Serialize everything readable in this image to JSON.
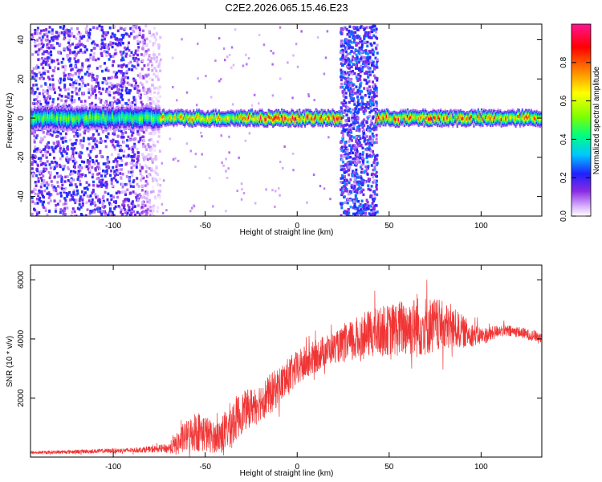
{
  "chart_data": [
    {
      "type": "heatmap",
      "title": "C2E2.2026.065.15.46.E23",
      "xlabel": "Height of straight line (km)",
      "ylabel": "Frequency (Hz)",
      "xlim": [
        -145,
        133
      ],
      "ylim": [
        -50,
        48
      ],
      "x_ticks": [
        -100,
        -50,
        0,
        50,
        100
      ],
      "y_ticks": [
        -40,
        -20,
        0,
        20,
        40
      ],
      "colorbar": {
        "label": "Normalized spectral amplitude",
        "range": [
          0,
          1
        ],
        "ticks": [
          0.0,
          0.2,
          0.4,
          0.6,
          0.8
        ],
        "colors": [
          "#ffffff",
          "#d9b3ff",
          "#8a2be2",
          "#2020ff",
          "#00c8ff",
          "#00ff80",
          "#80ff00",
          "#ffff00",
          "#ff8000",
          "#ff0000",
          "#ff1493"
        ]
      },
      "features": [
        {
          "name": "broadband noise",
          "x_range": [
            -145,
            -75
          ],
          "amplitude": 0.25
        },
        {
          "name": "narrowband line",
          "x_range": [
            -145,
            133
          ],
          "frequency_hz": 0,
          "peak_amplitude": 0.95
        },
        {
          "name": "broadband burst",
          "x_range": [
            23,
            43
          ],
          "amplitude": 0.3
        }
      ]
    },
    {
      "type": "line",
      "xlabel": "Height of straight line (km)",
      "ylabel": "SNR (10 * v/v)",
      "xlim": [
        -145,
        133
      ],
      "ylim": [
        0,
        6500
      ],
      "x_ticks": [
        -100,
        -50,
        0,
        50,
        100
      ],
      "y_ticks": [
        2000,
        4000,
        6000
      ],
      "series": [
        {
          "name": "SNR",
          "color": "#f03535",
          "x": [
            -145,
            -130,
            -110,
            -90,
            -80,
            -70,
            -65,
            -60,
            -55,
            -50,
            -45,
            -40,
            -35,
            -30,
            -25,
            -20,
            -15,
            -10,
            -5,
            0,
            5,
            10,
            15,
            20,
            25,
            30,
            35,
            40,
            45,
            50,
            55,
            60,
            65,
            70,
            75,
            80,
            85,
            90,
            95,
            100,
            105,
            110,
            115,
            120,
            125,
            133
          ],
          "values": [
            150,
            170,
            200,
            230,
            260,
            300,
            450,
            700,
            900,
            800,
            650,
            800,
            1200,
            1500,
            1700,
            1900,
            2100,
            2400,
            2700,
            3000,
            3200,
            3400,
            3600,
            3700,
            3800,
            3900,
            4050,
            4200,
            4250,
            4300,
            4350,
            4400,
            4400,
            4450,
            4450,
            4400,
            4350,
            4250,
            4150,
            4100,
            4150,
            4300,
            4250,
            4250,
            4150,
            4050
          ],
          "noise": [
            50,
            60,
            70,
            80,
            100,
            150,
            400,
            550,
            700,
            650,
            500,
            700,
            800,
            700,
            650,
            650,
            700,
            650,
            650,
            600,
            600,
            550,
            550,
            500,
            600,
            750,
            800,
            800,
            850,
            850,
            950,
            1000,
            1050,
            1000,
            950,
            850,
            700,
            550,
            400,
            300,
            250,
            200,
            200,
            180,
            180,
            180
          ]
        }
      ]
    }
  ]
}
